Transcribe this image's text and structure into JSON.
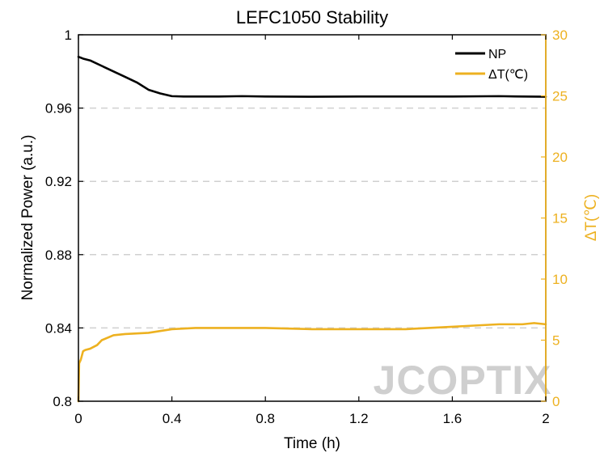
{
  "chart_data": {
    "type": "line",
    "title": "LEFC1050 Stability",
    "xlabel": "Time (h)",
    "ylabel_left": "Normalized Power (a.u.)",
    "ylabel_right": "ΔT(℃)",
    "xlim": [
      0,
      2
    ],
    "ylim_left": [
      0.8,
      1.0
    ],
    "ylim_right": [
      0,
      30
    ],
    "x_ticks": [
      0,
      0.4,
      0.8,
      1.2,
      1.6,
      2
    ],
    "x_tick_labels": [
      "0",
      "0.4",
      "0.8",
      "1.2",
      "1.6",
      "2"
    ],
    "y_left_ticks": [
      0.8,
      0.84,
      0.88,
      0.92,
      0.96,
      1.0
    ],
    "y_left_tick_labels": [
      "0.8",
      "0.84",
      "0.88",
      "0.92",
      "0.96",
      "1"
    ],
    "y_right_ticks": [
      0,
      5,
      10,
      15,
      20,
      25,
      30
    ],
    "y_right_tick_labels": [
      "0",
      "5",
      "10",
      "15",
      "20",
      "25",
      "30"
    ],
    "grid": "horizontal dashed at left-axis ticks",
    "legend_position": "top-right",
    "series": [
      {
        "name": "NP",
        "axis": "left",
        "color": "#000000",
        "x": [
          0,
          0.02,
          0.05,
          0.1,
          0.15,
          0.2,
          0.25,
          0.3,
          0.35,
          0.4,
          0.45,
          0.5,
          0.6,
          0.7,
          0.8,
          1.0,
          1.2,
          1.4,
          1.6,
          1.8,
          1.9,
          2.0
        ],
        "y": [
          0.988,
          0.987,
          0.986,
          0.983,
          0.98,
          0.977,
          0.974,
          0.97,
          0.968,
          0.9665,
          0.9663,
          0.9663,
          0.9663,
          0.9665,
          0.9663,
          0.9662,
          0.9663,
          0.9663,
          0.9663,
          0.9665,
          0.9663,
          0.9662
        ]
      },
      {
        "name": "ΔT(℃)",
        "axis": "right",
        "color": "#EDB120",
        "x": [
          0,
          0.003,
          0.01,
          0.02,
          0.03,
          0.05,
          0.08,
          0.1,
          0.15,
          0.2,
          0.3,
          0.4,
          0.5,
          0.6,
          0.8,
          1.0,
          1.2,
          1.4,
          1.6,
          1.7,
          1.8,
          1.9,
          1.95,
          2.0
        ],
        "y": [
          0,
          3.1,
          3.4,
          4.1,
          4.2,
          4.3,
          4.6,
          5.0,
          5.4,
          5.5,
          5.6,
          5.9,
          6.0,
          6.0,
          6.0,
          5.9,
          5.9,
          5.9,
          6.1,
          6.2,
          6.3,
          6.3,
          6.4,
          6.3
        ]
      }
    ]
  },
  "watermark": "JCOPTIX"
}
